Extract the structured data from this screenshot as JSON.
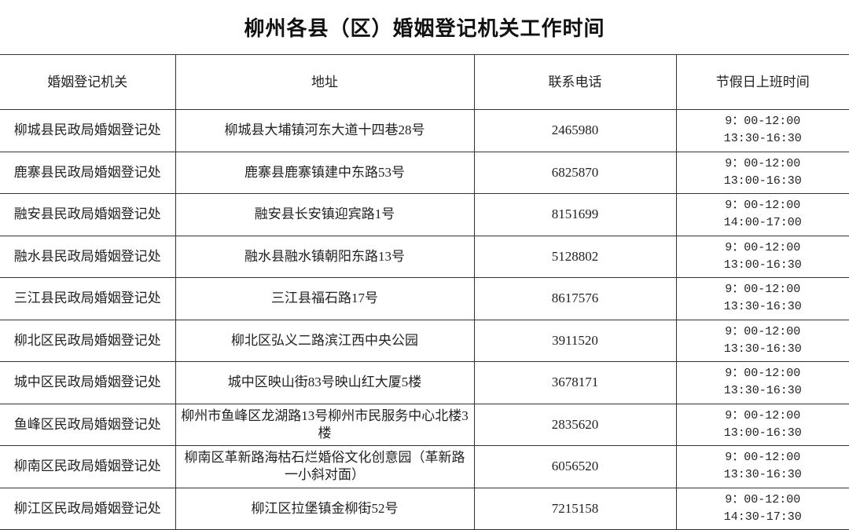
{
  "title": "柳州各县（区）婚姻登记机关工作时间",
  "headers": [
    "婚姻登记机关",
    "地址",
    "联系电话",
    "节假日上班时间"
  ],
  "rows": [
    {
      "office": "柳城县民政局婚姻登记处",
      "address": "柳城县大埔镇河东大道十四巷28号",
      "phone": "2465980",
      "morning": "9：00-12:00",
      "afternoon": "13:30-16:30"
    },
    {
      "office": "鹿寨县民政局婚姻登记处",
      "address": "鹿寨县鹿寨镇建中东路53号",
      "phone": "6825870",
      "morning": "9：00-12:00",
      "afternoon": "13:00-16:30"
    },
    {
      "office": "融安县民政局婚姻登记处",
      "address": "融安县长安镇迎宾路1号",
      "phone": "8151699",
      "morning": "9：00-12:00",
      "afternoon": "14:00-17:00"
    },
    {
      "office": "融水县民政局婚姻登记处",
      "address": "融水县融水镇朝阳东路13号",
      "phone": "5128802",
      "morning": "9：00-12:00",
      "afternoon": "13:00-16:30"
    },
    {
      "office": "三江县民政局婚姻登记处",
      "address": "三江县福石路17号",
      "phone": "8617576",
      "morning": "9：00-12:00",
      "afternoon": "13:30-16:30"
    },
    {
      "office": "柳北区民政局婚姻登记处",
      "address": "柳北区弘义二路滨江西中央公园",
      "phone": "3911520",
      "morning": "9：00-12:00",
      "afternoon": "13:30-16:30"
    },
    {
      "office": "城中区民政局婚姻登记处",
      "address": "城中区映山街83号映山红大厦5楼",
      "phone": "3678171",
      "morning": "9：00-12:00",
      "afternoon": "13:30-16:30"
    },
    {
      "office": "鱼峰区民政局婚姻登记处",
      "address": "柳州市鱼峰区龙湖路13号柳州市民服务中心北楼3楼",
      "phone": "2835620",
      "morning": "9：00-12:00",
      "afternoon": "13:00-16:30"
    },
    {
      "office": "柳南区民政局婚姻登记处",
      "address": "柳南区革新路海枯石烂婚俗文化创意园（革新路一小斜对面）",
      "phone": "6056520",
      "morning": "9：00-12:00",
      "afternoon": "13:30-16:30"
    },
    {
      "office": "柳江区民政局婚姻登记处",
      "address": "柳江区拉堡镇金柳街52号",
      "phone": "7215158",
      "morning": "9：00-12:00",
      "afternoon": "14:30-17:30"
    }
  ]
}
